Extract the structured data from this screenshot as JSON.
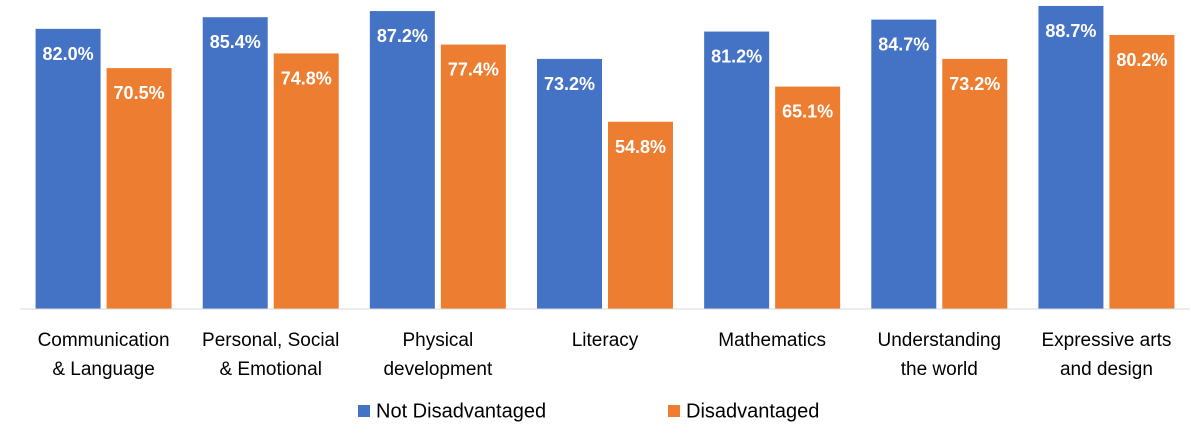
{
  "chart_data": {
    "type": "bar",
    "categories": [
      "Communication\n& Language",
      "Personal, Social\n& Emotional",
      "Physical\ndevelopment",
      "Literacy",
      "Mathematics",
      "Understanding\nthe world",
      "Expressive arts\nand design"
    ],
    "series": [
      {
        "name": "Not Disadvantaged",
        "color": "#4472c4",
        "values": [
          82.0,
          85.4,
          87.2,
          73.2,
          81.2,
          84.7,
          88.7
        ],
        "value_labels": [
          "82.0%",
          "85.4%",
          "87.2%",
          "73.2%",
          "81.2%",
          "84.7%",
          "88.7%"
        ]
      },
      {
        "name": "Disadvantaged",
        "color": "#ed7d31",
        "values": [
          70.5,
          74.8,
          77.4,
          54.8,
          65.1,
          73.2,
          80.2
        ],
        "value_labels": [
          "70.5%",
          "74.8%",
          "77.4%",
          "54.8%",
          "65.1%",
          "73.2%",
          "80.2%"
        ]
      }
    ],
    "ylim": [
      0,
      90
    ],
    "legend": "bottom"
  }
}
